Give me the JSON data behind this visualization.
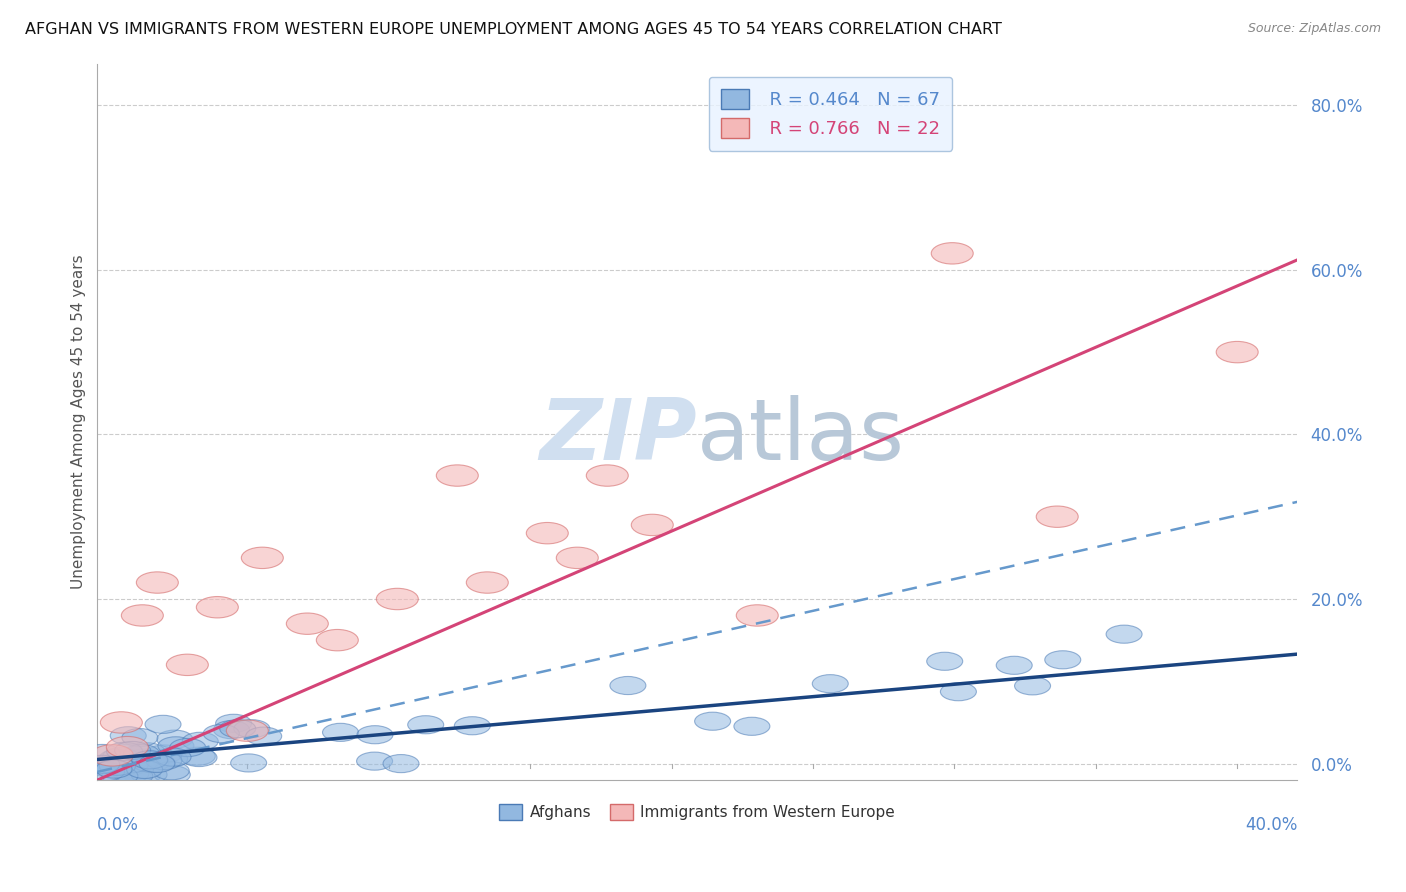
{
  "title": "AFGHAN VS IMMIGRANTS FROM WESTERN EUROPE UNEMPLOYMENT AMONG AGES 45 TO 54 YEARS CORRELATION CHART",
  "source": "Source: ZipAtlas.com",
  "xlabel_bottom_left": "0.0%",
  "xlabel_bottom_right": "40.0%",
  "ylabel": "Unemployment Among Ages 45 to 54 years",
  "right_ytick_labels": [
    "0.0%",
    "20.0%",
    "40.0%",
    "60.0%",
    "80.0%"
  ],
  "right_ytick_values": [
    0.0,
    0.2,
    0.4,
    0.6,
    0.8
  ],
  "xlim": [
    0.0,
    0.4
  ],
  "ylim": [
    -0.02,
    0.85
  ],
  "afghan_R": 0.464,
  "afghan_N": 67,
  "western_R": 0.766,
  "western_N": 22,
  "afghan_color": "#92b8e0",
  "afghan_edge_color": "#4a7ab5",
  "western_color": "#f4b8b8",
  "western_edge_color": "#d46a6a",
  "afghan_line_color": "#1a4480",
  "western_line_color": "#d44477",
  "afghan_dash_color": "#6699cc",
  "watermark_color": "#d0dff0",
  "background_color": "#ffffff",
  "grid_color": "#cccccc",
  "tick_color": "#5588cc",
  "legend_face_color": "#e8f2ff",
  "legend_edge_color": "#9ab8d8",
  "afghan_line_slope": 0.32,
  "afghan_line_intercept": 0.005,
  "western_line_slope": 1.58,
  "western_line_intercept": -0.02,
  "afghan_dash_slope": 0.82,
  "afghan_dash_intercept": -0.01,
  "western_scatter_x": [
    0.005,
    0.008,
    0.01,
    0.015,
    0.02,
    0.03,
    0.04,
    0.05,
    0.055,
    0.07,
    0.08,
    0.1,
    0.12,
    0.13,
    0.15,
    0.16,
    0.17,
    0.185,
    0.22,
    0.285,
    0.32,
    0.38
  ],
  "western_scatter_y": [
    0.01,
    0.05,
    0.02,
    0.18,
    0.22,
    0.12,
    0.19,
    0.04,
    0.25,
    0.17,
    0.15,
    0.2,
    0.35,
    0.22,
    0.28,
    0.25,
    0.35,
    0.29,
    0.18,
    0.62,
    0.3,
    0.5
  ]
}
